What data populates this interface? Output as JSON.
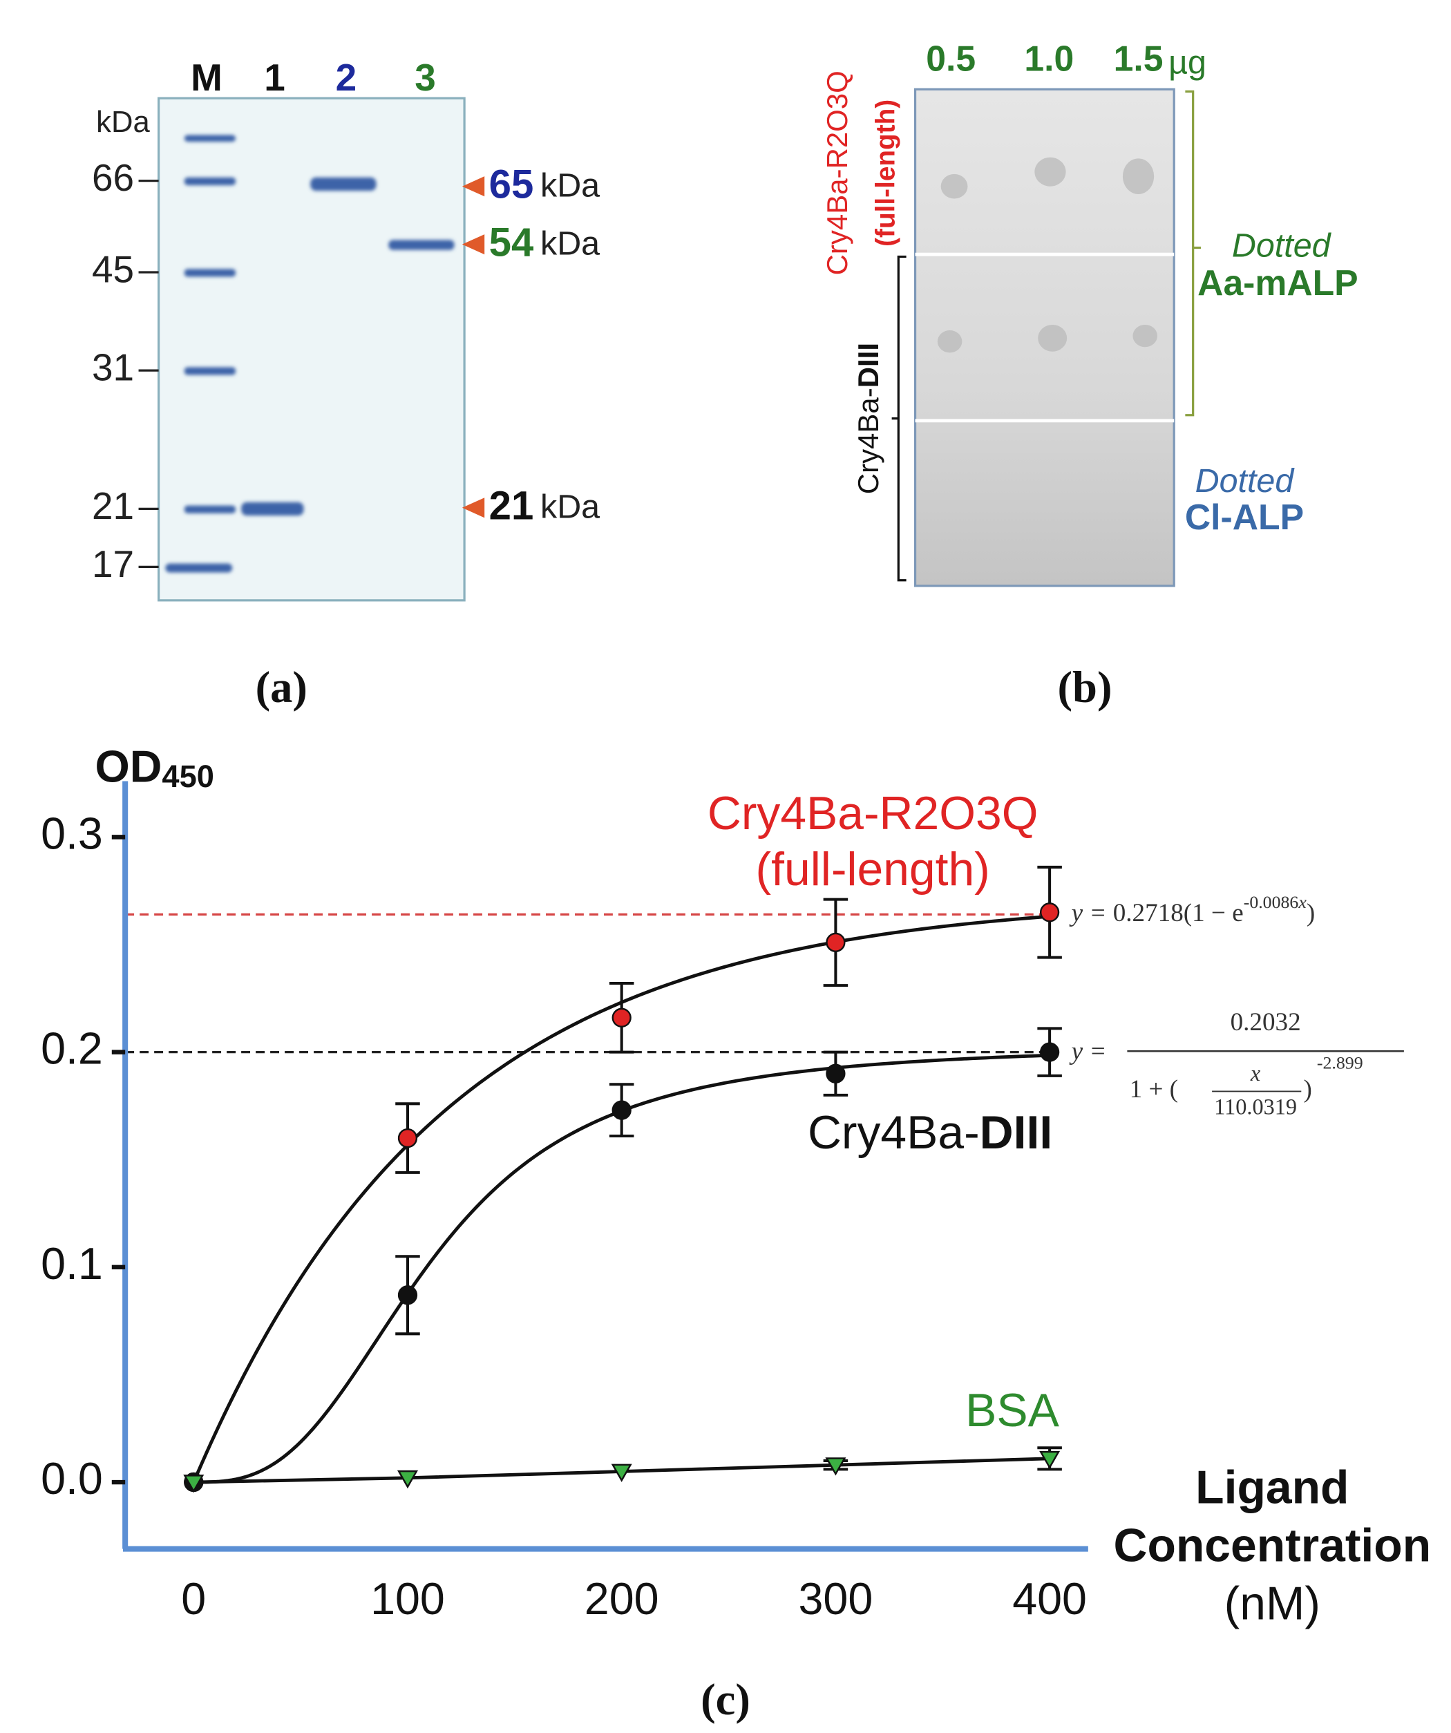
{
  "panel_a": {
    "lanes": [
      "M",
      "1",
      "2",
      "3"
    ],
    "unit": "kDa",
    "markers": [
      66,
      45,
      31,
      21,
      17
    ],
    "bands": [
      65,
      54,
      21
    ],
    "caption": "(a)"
  },
  "panel_b": {
    "doses": [
      "0.5",
      "1.0",
      "1.5"
    ],
    "dose_unit": "µg",
    "row_label_1": "Cry4Ba-R2O3Q",
    "row_label_1_sub": "(full-length)",
    "row_label_2": "Cry4Ba-",
    "row_label_2_bold": "DIII",
    "dotted_1": {
      "prefix": "Dotted",
      "name": "Aa-mALP"
    },
    "dotted_2": {
      "prefix": "Dotted",
      "name": "Cl-ALP"
    },
    "caption": "(b)"
  },
  "chart_data": {
    "type": "line",
    "caption": "(c)",
    "y_label": "OD",
    "y_label_sub": "450",
    "x_label_lines": [
      "Ligand",
      "Concentration"
    ],
    "x_unit": "(nM)",
    "x": [
      0,
      100,
      200,
      300,
      400
    ],
    "xlim": [
      -32,
      418
    ],
    "xticks": [
      0,
      100,
      200,
      300,
      400
    ],
    "ylim": [
      -0.031,
      0.326
    ],
    "yticks": [
      {
        "value": 0,
        "label": "0.0"
      },
      0.1,
      0.2,
      0.3
    ],
    "reference_lines": [
      {
        "value": 0.264,
        "color": "#d64545"
      },
      {
        "value": 0.2,
        "color": "#222222"
      }
    ],
    "series": [
      {
        "name": "Cry4Ba-R2O3Q",
        "subtitle": "(full-length)",
        "color": "#e02424",
        "marker": "circle",
        "values": [
          0,
          0.16,
          0.216,
          0.251,
          0.265
        ],
        "errors": [
          0,
          0.016,
          0.016,
          0.02,
          0.021
        ],
        "fit": {
          "lhs": "y = ",
          "a": 0.2718,
          "open": "(1 − e",
          "k": -0.0086,
          "var": "x",
          "close": ")"
        }
      },
      {
        "name": "Cry4Ba-",
        "name_bold": "DIII",
        "color": "#111111",
        "marker": "circle",
        "values": [
          0,
          0.087,
          0.173,
          0.19,
          0.2
        ],
        "errors": [
          0,
          0.018,
          0.012,
          0.01,
          0.011
        ],
        "fit": {
          "lhs": "y = ",
          "top": 0.2032,
          "one": "1 + (",
          "var": "x",
          "c": 110.0319,
          "close": ")",
          "n": -2.899
        }
      },
      {
        "name": "BSA",
        "color": "#3cb043",
        "marker": "triangle",
        "values": [
          0,
          0.002,
          0.005,
          0.008,
          0.011
        ],
        "errors": [
          0,
          0,
          0,
          0.002,
          0.005
        ]
      }
    ]
  }
}
